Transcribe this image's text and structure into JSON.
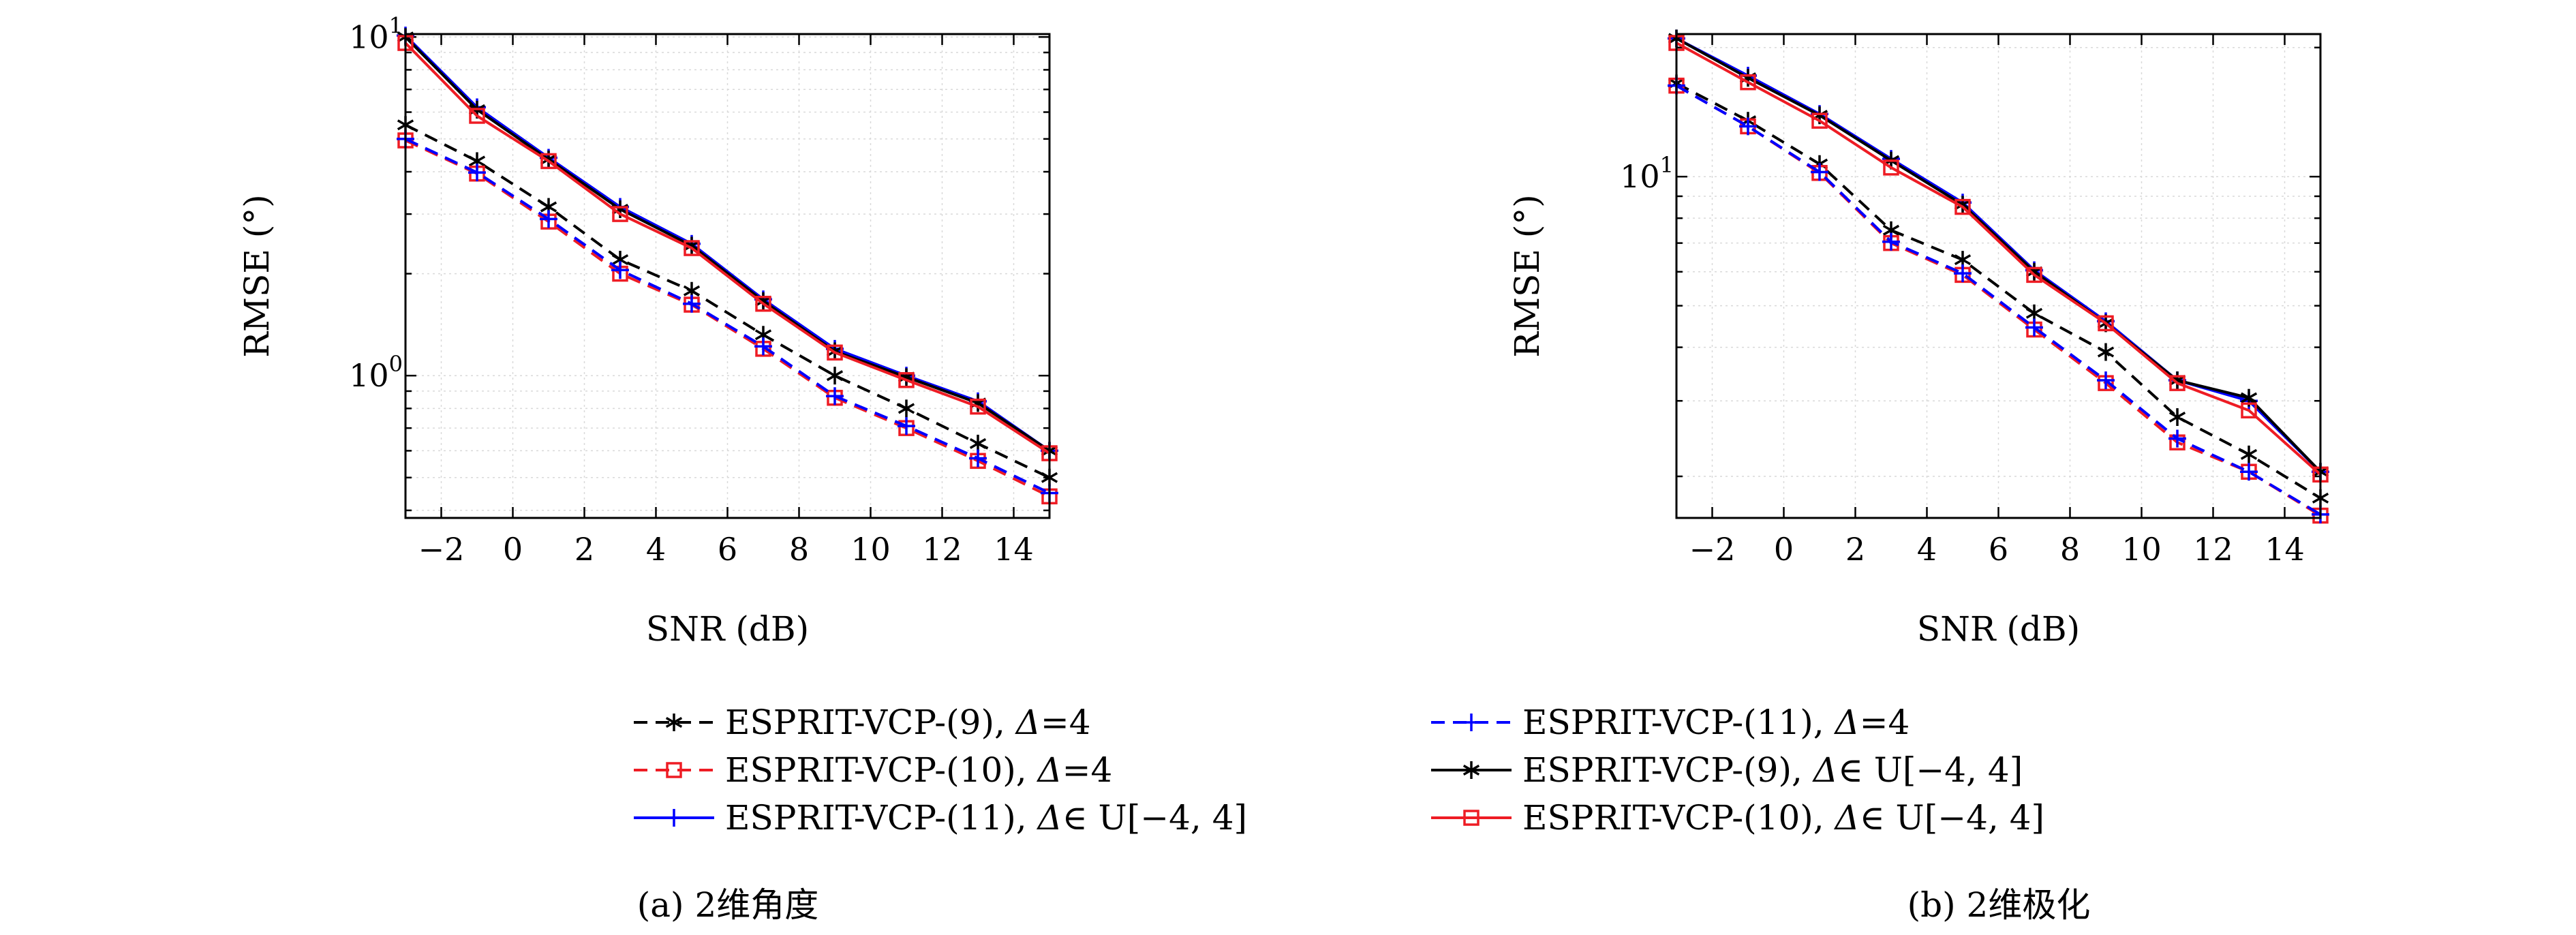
{
  "chart_data": [
    {
      "type": "line",
      "caption": "(a) 2维角度",
      "xlabel": "SNR (dB)",
      "ylabel": "RMSE (°)",
      "xlim": [
        -3,
        15
      ],
      "xticks": [
        -2,
        0,
        2,
        4,
        6,
        8,
        10,
        12,
        14
      ],
      "yscale": "log",
      "ylim": [
        0.38,
        10.2
      ],
      "yticks": [
        {
          "value": 1,
          "mantissa": "10",
          "exponent": "0"
        },
        {
          "value": 10,
          "mantissa": "10",
          "exponent": "1"
        }
      ],
      "grid": true,
      "x": [
        -3,
        -1,
        1,
        3,
        5,
        7,
        9,
        11,
        13,
        15
      ],
      "series": [
        {
          "key": "vcp9_d4",
          "values": [
            5.5,
            4.3,
            3.15,
            2.2,
            1.78,
            1.32,
            1.0,
            0.8,
            0.63,
            0.5
          ]
        },
        {
          "key": "vcp10_d4",
          "values": [
            4.95,
            3.95,
            2.85,
            2.0,
            1.62,
            1.2,
            0.86,
            0.7,
            0.56,
            0.44
          ]
        },
        {
          "key": "vcp11_u",
          "values": [
            10.1,
            6.2,
            4.4,
            3.15,
            2.45,
            1.68,
            1.2,
            1.0,
            0.84,
            0.6
          ]
        },
        {
          "key": "vcp11_d4",
          "values": [
            5.0,
            3.98,
            2.9,
            2.05,
            1.63,
            1.22,
            0.87,
            0.71,
            0.57,
            0.45
          ]
        },
        {
          "key": "vcp9_u",
          "values": [
            10.0,
            6.1,
            4.35,
            3.1,
            2.42,
            1.66,
            1.18,
            0.99,
            0.83,
            0.6
          ]
        },
        {
          "key": "vcp10_u",
          "values": [
            9.6,
            5.85,
            4.3,
            3.0,
            2.38,
            1.63,
            1.17,
            0.97,
            0.81,
            0.59
          ]
        }
      ]
    },
    {
      "type": "line",
      "caption": "(b) 2维极化",
      "xlabel": "SNR (dB)",
      "ylabel": "RMSE (°)",
      "xlim": [
        -3,
        15
      ],
      "xticks": [
        -2,
        0,
        2,
        4,
        6,
        8,
        10,
        12,
        14
      ],
      "yscale": "log",
      "ylim": [
        1.6,
        21.5
      ],
      "yticks": [
        {
          "value": 10,
          "mantissa": "10",
          "exponent": "1"
        }
      ],
      "grid": true,
      "x": [
        -3,
        -1,
        1,
        3,
        5,
        7,
        9,
        11,
        13,
        15
      ],
      "series": [
        {
          "key": "vcp9_d4",
          "values": [
            16.5,
            13.5,
            10.7,
            7.5,
            6.4,
            4.8,
            3.9,
            2.75,
            2.25,
            1.78
          ]
        },
        {
          "key": "vcp10_d4",
          "values": [
            16.3,
            13.1,
            10.2,
            7.0,
            5.9,
            4.4,
            3.3,
            2.4,
            2.05,
            1.62
          ]
        },
        {
          "key": "vcp11_u",
          "values": [
            21.0,
            17.2,
            14.0,
            11.0,
            8.7,
            6.05,
            4.6,
            3.35,
            3.0,
            2.05
          ]
        },
        {
          "key": "vcp11_d4",
          "values": [
            16.3,
            13.1,
            10.25,
            7.05,
            5.95,
            4.45,
            3.35,
            2.45,
            2.05,
            1.63
          ]
        },
        {
          "key": "vcp9_u",
          "values": [
            21.0,
            17.0,
            13.9,
            10.9,
            8.6,
            6.0,
            4.55,
            3.35,
            3.05,
            2.05
          ]
        },
        {
          "key": "vcp10_u",
          "values": [
            20.5,
            16.6,
            13.5,
            10.5,
            8.5,
            5.9,
            4.55,
            3.3,
            2.85,
            2.02
          ]
        }
      ]
    }
  ],
  "series_styles": {
    "vcp9_d4": {
      "color": "#000000",
      "dash": true,
      "marker": "asterisk"
    },
    "vcp10_d4": {
      "color": "#ee1c24",
      "dash": true,
      "marker": "square"
    },
    "vcp11_u": {
      "color": "#0000ff",
      "dash": false,
      "marker": "plus"
    },
    "vcp11_d4": {
      "color": "#0000ff",
      "dash": true,
      "marker": "plus"
    },
    "vcp9_u": {
      "color": "#000000",
      "dash": false,
      "marker": "asterisk"
    },
    "vcp10_u": {
      "color": "#ee1c24",
      "dash": false,
      "marker": "square"
    }
  },
  "legend": [
    {
      "key": "vcp9_d4",
      "prefix": "ESPRIT-VCP-(9), ",
      "delta": "Δ",
      "suffix": "=4"
    },
    {
      "key": "vcp11_d4",
      "prefix": "ESPRIT-VCP-(11), ",
      "delta": "Δ",
      "suffix": "=4"
    },
    {
      "key": "vcp10_d4",
      "prefix": "ESPRIT-VCP-(10), ",
      "delta": "Δ",
      "suffix": "=4"
    },
    {
      "key": "vcp9_u",
      "prefix": "ESPRIT-VCP-(9), ",
      "delta": "Δ",
      "suffix": "∈ U[−4, 4]"
    },
    {
      "key": "vcp11_u",
      "prefix": "ESPRIT-VCP-(11), ",
      "delta": "Δ",
      "suffix": "∈ U[−4, 4]"
    },
    {
      "key": "vcp10_u",
      "prefix": "ESPRIT-VCP-(10), ",
      "delta": "Δ",
      "suffix": "∈ U[−4, 4]"
    }
  ]
}
